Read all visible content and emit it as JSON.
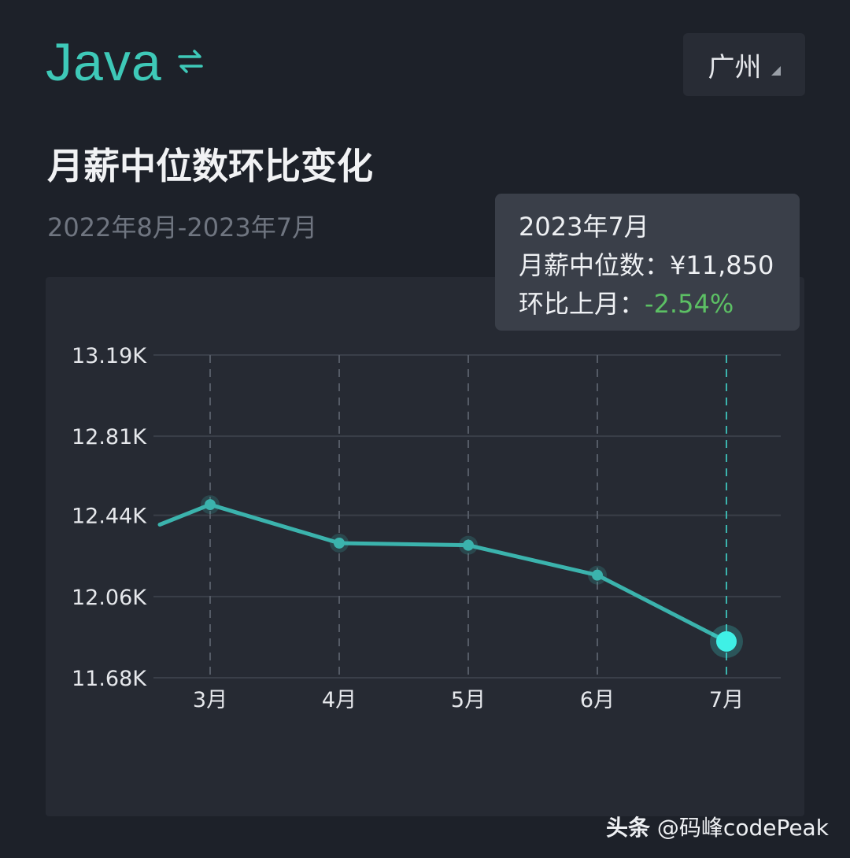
{
  "header": {
    "language": "Java",
    "switch_icon": "swap-arrows-icon",
    "city": "广州",
    "title": "月薪中位数环比变化",
    "date_range": "2022年8月-2023年7月"
  },
  "colors": {
    "accent": "#3ec9b8",
    "line": "#3bb3ad",
    "highlight_point": "#3ff0e6",
    "negative": "#5cc064",
    "background": "#1d2129",
    "panel": "#262a33"
  },
  "tooltip": {
    "period": "2023年7月",
    "median_label": "月薪中位数：",
    "median_value": "¥11,850",
    "mom_label": "环比上月：",
    "mom_value": "-2.54%"
  },
  "chart_data": {
    "type": "line",
    "categories": [
      "3月",
      "4月",
      "5月",
      "6月",
      "7月"
    ],
    "values": [
      12.49,
      12.31,
      12.3,
      12.16,
      11.85
    ],
    "previous_value": 12.25,
    "y_ticks": [
      "13.19K",
      "12.81K",
      "12.44K",
      "12.06K",
      "11.68K"
    ],
    "y_tick_values": [
      13.19,
      12.81,
      12.44,
      12.06,
      11.68
    ],
    "ylim": [
      11.68,
      13.19
    ],
    "highlighted_index": 4,
    "grid": true,
    "xlabel": "",
    "ylabel": ""
  },
  "watermark": {
    "brand": "头条",
    "handle": "@码峰codePeak"
  }
}
